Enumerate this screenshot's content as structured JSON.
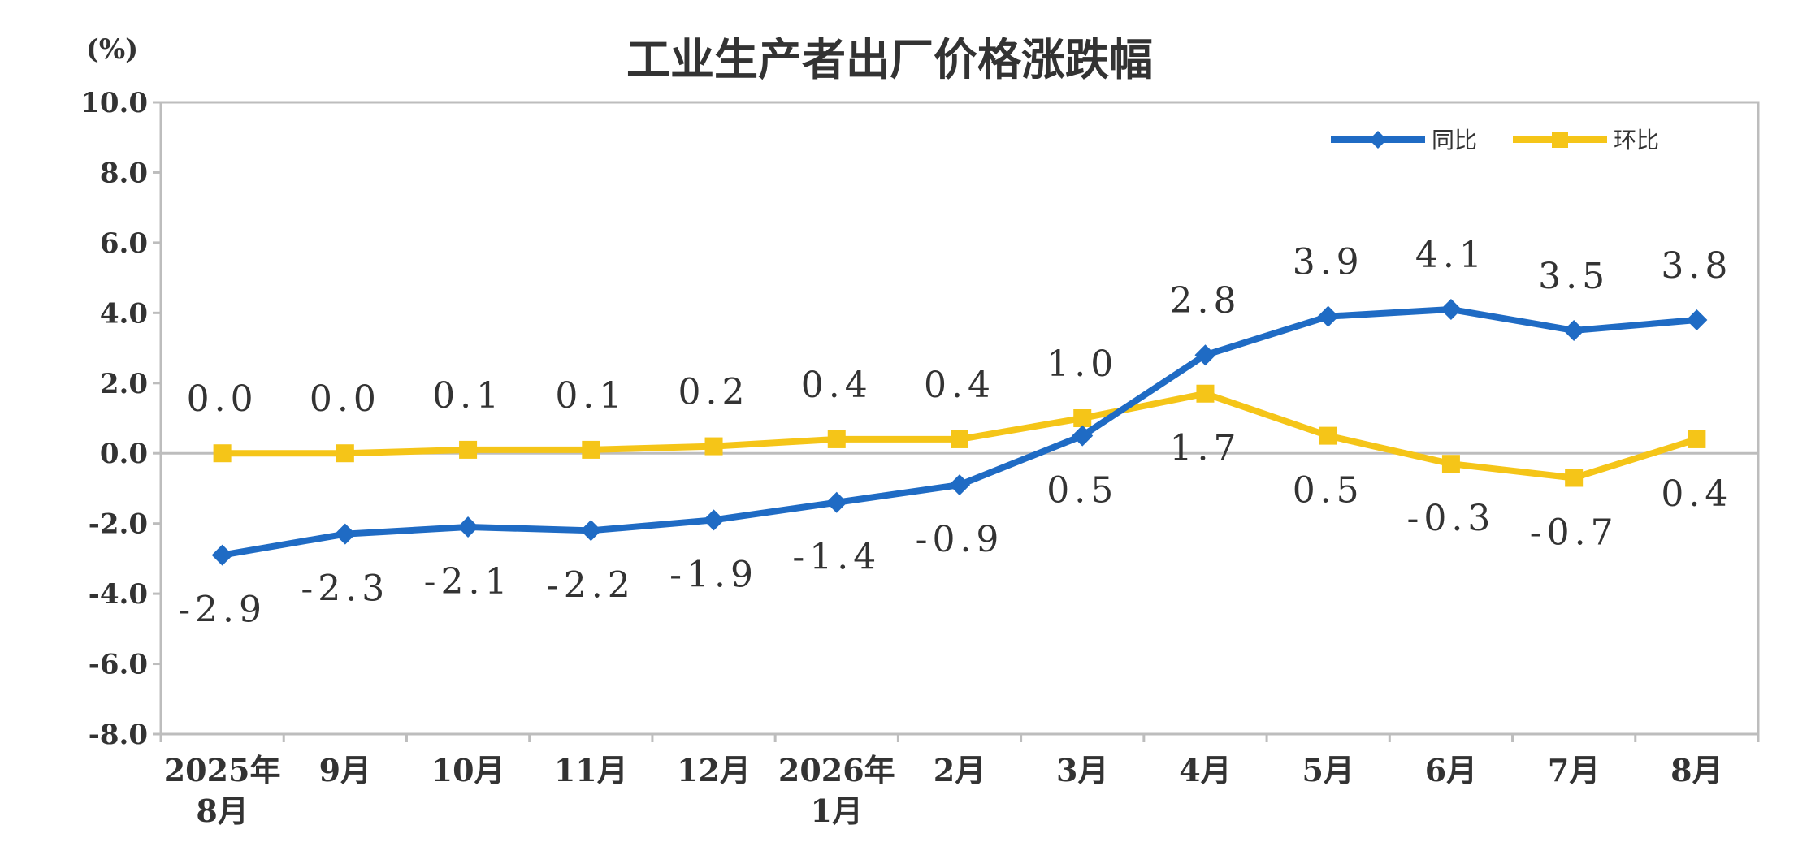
{
  "chart_data": {
    "type": "line",
    "title": "工业生产者出厂价格涨跌幅",
    "unit": "(%)",
    "ylim": [
      -8,
      10
    ],
    "yticks": [
      10,
      8,
      6,
      4,
      2,
      0,
      -2,
      -4,
      -6,
      -8
    ],
    "ytick_labels": [
      "10.0",
      "8.0",
      "6.0",
      "4.0",
      "2.0",
      "0.0",
      "-2.0",
      "-4.0",
      "-6.0",
      "-8.0"
    ],
    "categories": [
      [
        "2025年",
        "8月"
      ],
      [
        "9月"
      ],
      [
        "10月"
      ],
      [
        "11月"
      ],
      [
        "12月"
      ],
      [
        "2026年",
        "1月"
      ],
      [
        "2月"
      ],
      [
        "3月"
      ],
      [
        "4月"
      ],
      [
        "5月"
      ],
      [
        "6月"
      ],
      [
        "7月"
      ],
      [
        "8月"
      ]
    ],
    "series": [
      {
        "name": "同比",
        "color": "#1f6bc4",
        "marker": "diamond",
        "values": [
          -2.9,
          -2.3,
          -2.1,
          -2.2,
          -1.9,
          -1.4,
          -0.9,
          0.5,
          2.8,
          3.9,
          4.1,
          3.5,
          3.8
        ],
        "labels": [
          "-2.9",
          "-2.3",
          "-2.1",
          "-2.2",
          "-1.9",
          "-1.4",
          "-0.9",
          "0.5",
          "2.8",
          "3.9",
          "4.1",
          "3.5",
          "3.8"
        ],
        "label_positions": [
          "below",
          "below",
          "below",
          "below",
          "below",
          "below",
          "below",
          "below",
          "above",
          "above",
          "above",
          "above",
          "above"
        ]
      },
      {
        "name": "环比",
        "color": "#f5c518",
        "marker": "square",
        "values": [
          0.0,
          0.0,
          0.1,
          0.1,
          0.2,
          0.4,
          0.4,
          1.0,
          1.7,
          0.5,
          -0.3,
          -0.7,
          0.4
        ],
        "labels": [
          "0.0",
          "0.0",
          "0.1",
          "0.1",
          "0.2",
          "0.4",
          "0.4",
          "1.0",
          "1.7",
          "0.5",
          "-0.3",
          "-0.7",
          "0.4"
        ],
        "label_positions": [
          "above",
          "above",
          "above",
          "above",
          "above",
          "above",
          "above",
          "above",
          "below",
          "below",
          "below",
          "below",
          "below"
        ]
      }
    ],
    "legend_position": "top-right",
    "grid": false
  }
}
